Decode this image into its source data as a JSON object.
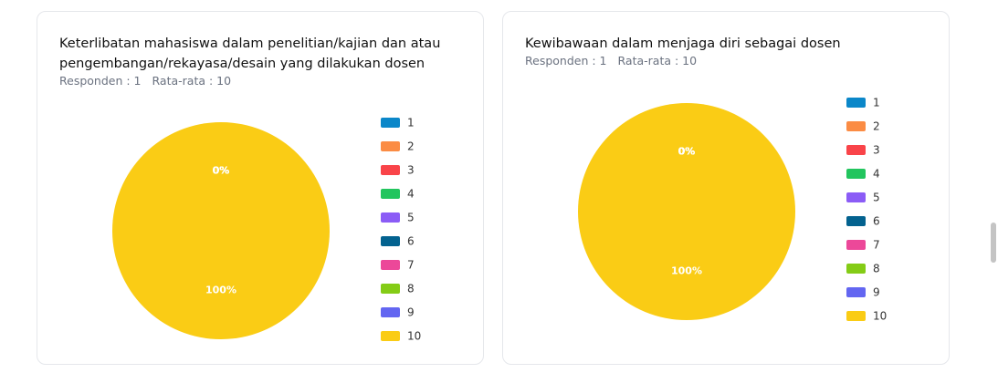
{
  "chart_data": [
    {
      "type": "pie",
      "title": "Keterlibatan mahasiswa dalam penelitian/kajian dan atau pengembangan/rekayasa/desain yang dilakukan dosen",
      "subtitle": [
        "Responden : 1",
        "Rata-rata : 10"
      ],
      "categories": [
        "1",
        "2",
        "3",
        "4",
        "5",
        "6",
        "7",
        "8",
        "9",
        "10"
      ],
      "values": [
        0,
        0,
        0,
        0,
        0,
        0,
        0,
        0,
        0,
        100
      ],
      "value_labels": [
        "0%",
        "0%",
        "0%",
        "0%",
        "0%",
        "0%",
        "0%",
        "0%",
        "0%",
        "100%"
      ],
      "colors": [
        "#0b87c9",
        "#fb8c44",
        "#f94449",
        "#22c55e",
        "#8b5cf6",
        "#03628f",
        "#ec4899",
        "#84cc16",
        "#6366f1",
        "#facc15"
      ],
      "legend": "right"
    },
    {
      "type": "pie",
      "title": "Kewibawaan dalam menjaga diri sebagai dosen",
      "subtitle": [
        "Responden : 1",
        "Rata-rata : 10"
      ],
      "categories": [
        "1",
        "2",
        "3",
        "4",
        "5",
        "6",
        "7",
        "8",
        "9",
        "10"
      ],
      "values": [
        0,
        0,
        0,
        0,
        0,
        0,
        0,
        0,
        0,
        100
      ],
      "value_labels": [
        "0%",
        "0%",
        "0%",
        "0%",
        "0%",
        "0%",
        "0%",
        "0%",
        "0%",
        "100%"
      ],
      "colors": [
        "#0b87c9",
        "#fb8c44",
        "#f94449",
        "#22c55e",
        "#8b5cf6",
        "#03628f",
        "#ec4899",
        "#84cc16",
        "#6366f1",
        "#facc15"
      ],
      "legend": "right"
    }
  ]
}
